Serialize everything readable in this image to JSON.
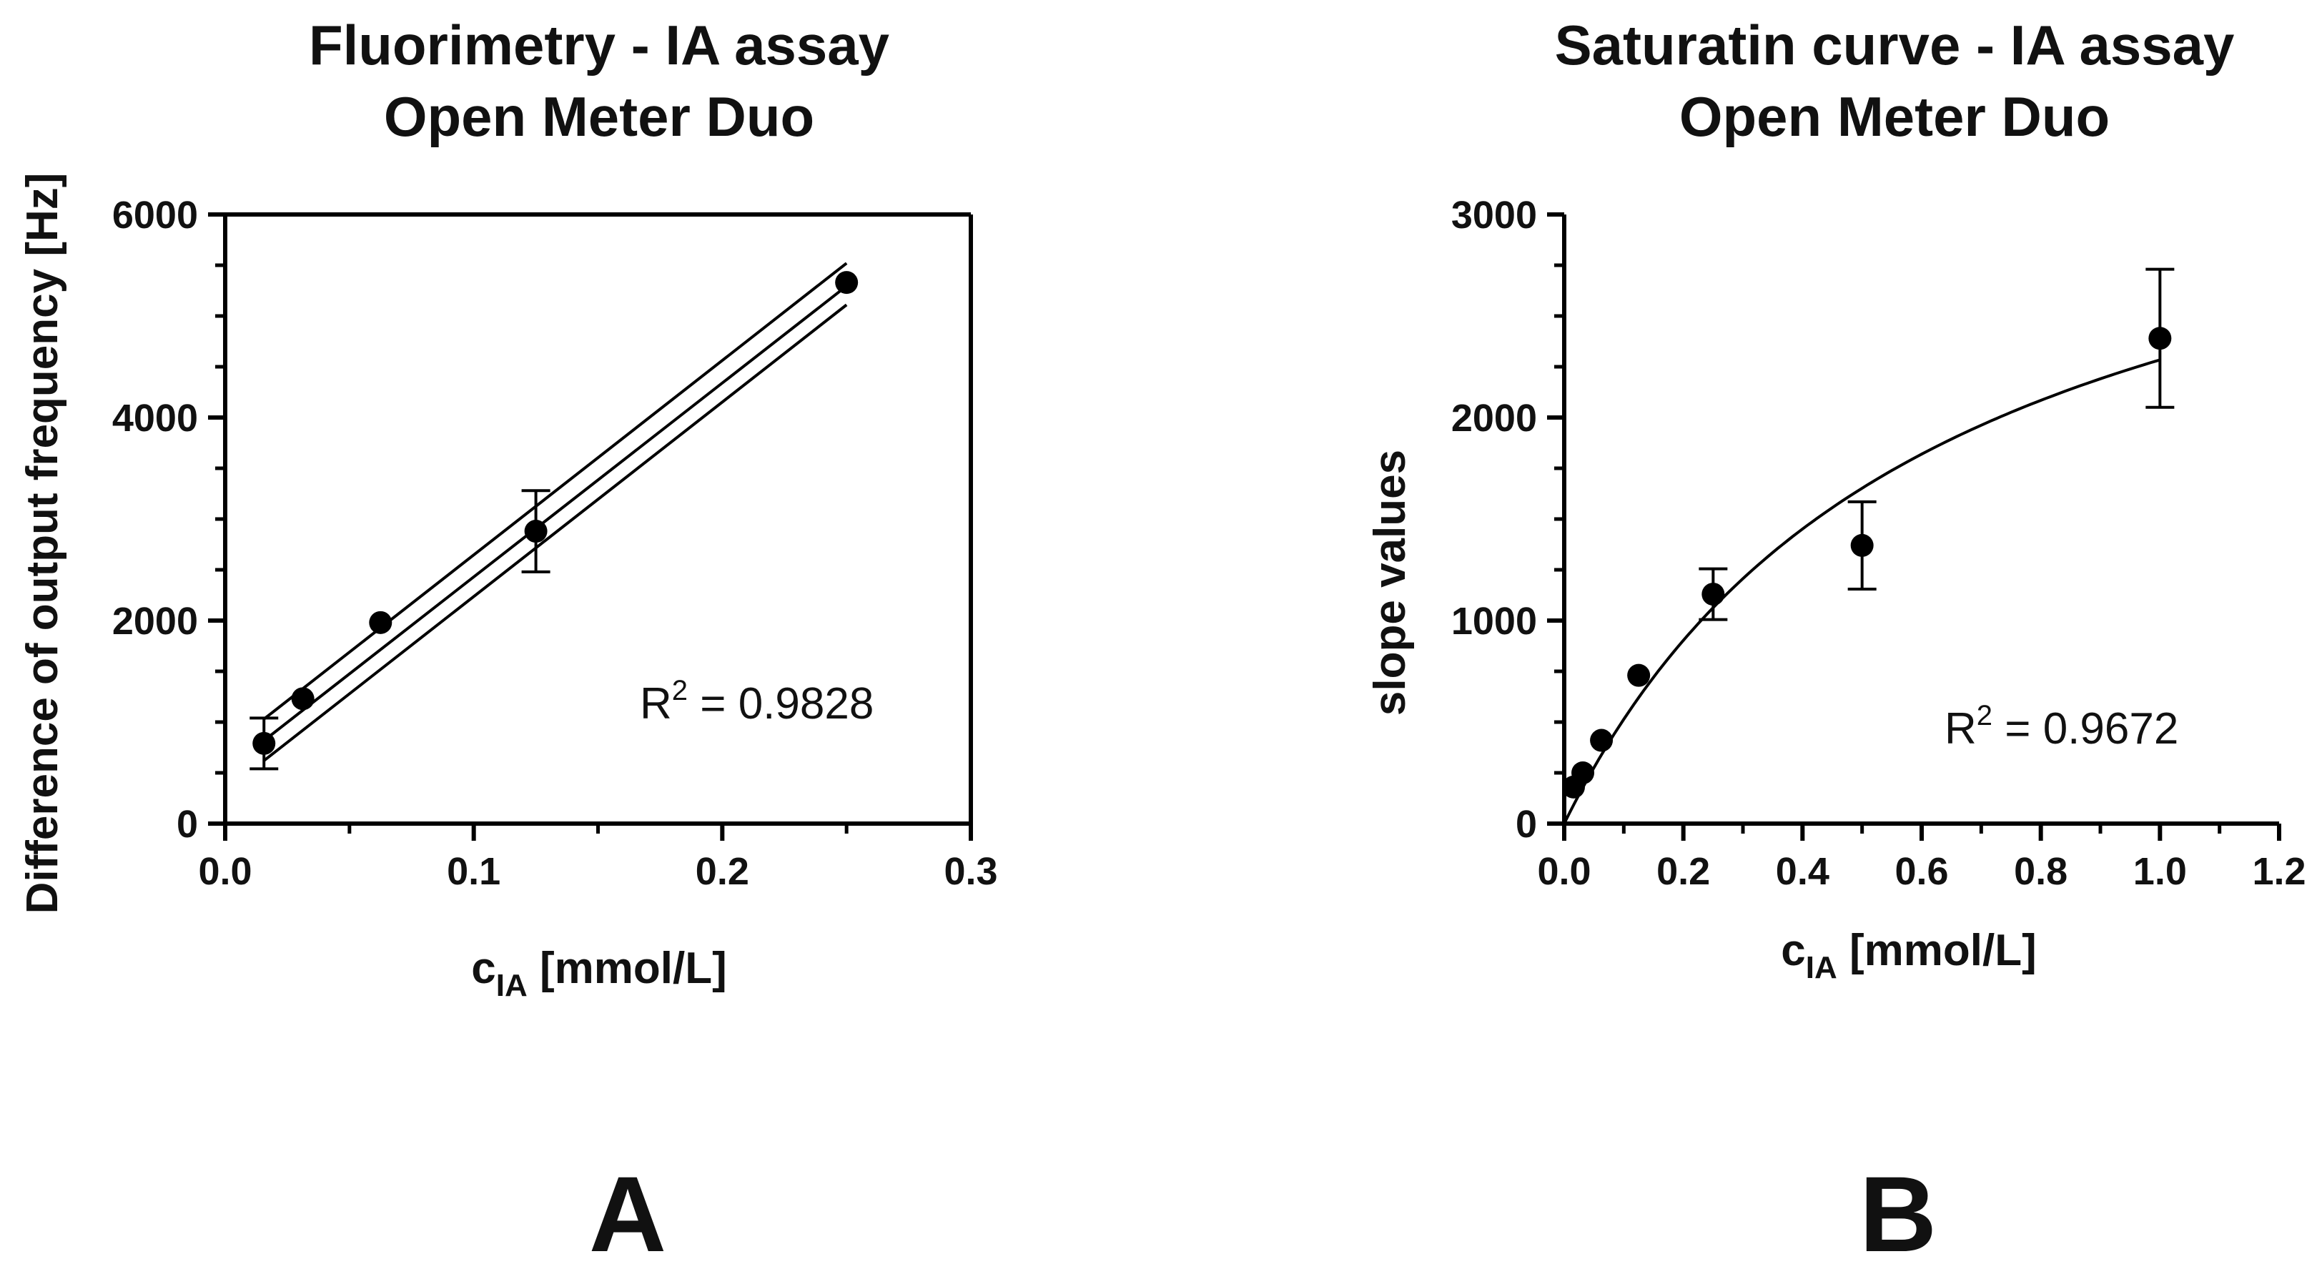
{
  "chart_data": [
    {
      "type": "scatter",
      "panel_label": "A",
      "title_line1": "Fluorimetry - IA assay",
      "title_line2": "Open Meter Duo",
      "xlabel_main": "c",
      "xlabel_sub": "IA",
      "xlabel_rest": " [mmol/L]",
      "ylabel": "Difference of output frequency [Hz]",
      "xlim": [
        0,
        0.3
      ],
      "ylim": [
        0,
        6000
      ],
      "xticks": [
        0.0,
        0.1,
        0.2,
        0.3
      ],
      "xtick_labels": [
        "0.0",
        "0.1",
        "0.2",
        "0.3"
      ],
      "yticks": [
        0,
        2000,
        4000,
        6000
      ],
      "ytick_labels": [
        "0",
        "2000",
        "4000",
        "6000"
      ],
      "grid": false,
      "points": [
        {
          "x": 0.0156,
          "y": 790,
          "err": 250
        },
        {
          "x": 0.03125,
          "y": 1230,
          "err": 0
        },
        {
          "x": 0.0625,
          "y": 1980,
          "err": 0
        },
        {
          "x": 0.125,
          "y": 2880,
          "err": 400
        },
        {
          "x": 0.25,
          "y": 5330,
          "err": 0
        }
      ],
      "fit": {
        "type": "linear",
        "slope": 19100,
        "intercept": 520,
        "x_range": [
          0.0156,
          0.25
        ]
      },
      "confidence_band": {
        "lower": [
          [
            0.0156,
            620
          ],
          [
            0.25,
            5110
          ]
        ],
        "upper": [
          [
            0.0156,
            1030
          ],
          [
            0.25,
            5520
          ]
        ]
      },
      "r2_prefix": "R",
      "r2_sup": "2",
      "r2_value": " = 0.9828"
    },
    {
      "type": "scatter",
      "panel_label": "B",
      "title_line1": "Saturatin curve - IA assay",
      "title_line2": "Open Meter Duo",
      "xlabel_main": "c",
      "xlabel_sub": "IA",
      "xlabel_rest": " [mmol/L]",
      "ylabel": "slope values",
      "xlim": [
        0,
        1.2
      ],
      "ylim": [
        0,
        3000
      ],
      "xticks": [
        0.0,
        0.2,
        0.4,
        0.6,
        0.8,
        1.0,
        1.2
      ],
      "xtick_labels": [
        "0.0",
        "0.2",
        "0.4",
        "0.6",
        "0.8",
        "1.0",
        "1.2"
      ],
      "yticks": [
        0,
        1000,
        2000,
        3000
      ],
      "ytick_labels": [
        "0",
        "1000",
        "2000",
        "3000"
      ],
      "grid": false,
      "points": [
        {
          "x": 0.0156,
          "y": 180,
          "err": 0
        },
        {
          "x": 0.03125,
          "y": 250,
          "err": 0
        },
        {
          "x": 0.0625,
          "y": 410,
          "err": 0
        },
        {
          "x": 0.125,
          "y": 730,
          "err": 0
        },
        {
          "x": 0.25,
          "y": 1130,
          "err": 125
        },
        {
          "x": 0.5,
          "y": 1370,
          "err": 215
        },
        {
          "x": 1.0,
          "y": 2390,
          "err": 340
        }
      ],
      "fit": {
        "type": "saturation",
        "vmax": 3700,
        "km": 0.62,
        "x_range": [
          0,
          1.0
        ]
      },
      "r2_prefix": "R",
      "r2_sup": "2",
      "r2_value": " = 0.9672"
    }
  ]
}
